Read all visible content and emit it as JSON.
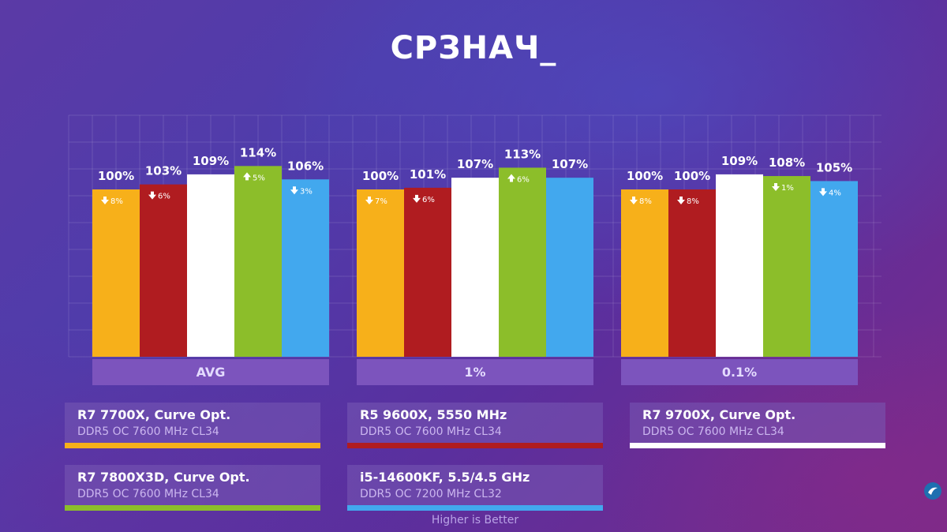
{
  "title": "СРЗНАЧ_",
  "footer_note": "Higher is Better",
  "colors": {
    "orange": "#f7b01a",
    "red": "#b01c20",
    "white": "#ffffff",
    "green": "#8cbe2a",
    "blue": "#42a8ee",
    "group_label_bg": "#7c54bd"
  },
  "chart_data": {
    "type": "bar",
    "ylabel": "",
    "xlabel": "",
    "ylim": [
      0,
      120
    ],
    "series": [
      {
        "name": "R7 7700X, Curve Opt.",
        "color": "#f7b01a",
        "values": [
          100,
          100,
          100
        ],
        "deltas": [
          {
            "dir": "down",
            "text": "8%"
          },
          {
            "dir": "down",
            "text": "7%"
          },
          {
            "dir": "down",
            "text": "8%"
          }
        ]
      },
      {
        "name": "R5 9600X, 5550 MHz",
        "color": "#b01c20",
        "values": [
          103,
          101,
          100
        ],
        "deltas": [
          {
            "dir": "down",
            "text": "6%"
          },
          {
            "dir": "down",
            "text": "6%"
          },
          {
            "dir": "down",
            "text": "8%"
          }
        ]
      },
      {
        "name": "R7 9700X, Curve Opt.",
        "color": "#ffffff",
        "values": [
          109,
          107,
          109
        ],
        "deltas": [
          null,
          null,
          null
        ]
      },
      {
        "name": "R7 7800X3D, Curve Opt.",
        "color": "#8cbe2a",
        "values": [
          114,
          113,
          108
        ],
        "deltas": [
          {
            "dir": "up",
            "text": "5%"
          },
          {
            "dir": "up",
            "text": "6%"
          },
          {
            "dir": "down",
            "text": "1%"
          }
        ]
      },
      {
        "name": "i5-14600KF, 5.5/4.5 GHz",
        "color": "#42a8ee",
        "values": [
          106,
          107,
          105
        ],
        "deltas": [
          {
            "dir": "down",
            "text": "3%"
          },
          null,
          {
            "dir": "down",
            "text": "4%"
          }
        ]
      }
    ],
    "categories": [
      "AVG",
      "1%",
      "0.1%"
    ],
    "value_labels": [
      [
        "100%",
        "103%",
        "109%",
        "114%",
        "106%"
      ],
      [
        "100%",
        "101%",
        "107%",
        "113%",
        "107%"
      ],
      [
        "100%",
        "100%",
        "109%",
        "108%",
        "105%"
      ]
    ]
  },
  "legend": [
    {
      "name": "R7 7700X, Curve Opt.",
      "memory": "DDR5 OC 7600 MHz CL34",
      "color": "#f7b01a"
    },
    {
      "name": "R5 9600X, 5550 MHz",
      "memory": "DDR5 OC 7600 MHz CL34",
      "color": "#b01c20"
    },
    {
      "name": "R7 9700X, Curve Opt.",
      "memory": "DDR5 OC 7600 MHz CL34",
      "color": "#ffffff"
    },
    {
      "name": "R7 7800X3D, Curve Opt.",
      "memory": "DDR5 OC 7600 MHz CL34",
      "color": "#8cbe2a"
    },
    {
      "name": "i5-14600KF, 5.5/4.5 GHz",
      "memory": "DDR5 OC 7200 MHz CL32",
      "color": "#42a8ee"
    }
  ]
}
